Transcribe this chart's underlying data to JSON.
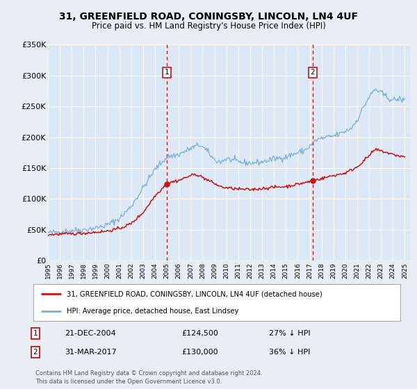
{
  "title": "31, GREENFIELD ROAD, CONINGSBY, LINCOLN, LN4 4UF",
  "subtitle": "Price paid vs. HM Land Registry's House Price Index (HPI)",
  "bg_color": "#e8eef5",
  "plot_bg_color": "#dce8f5",
  "grid_color": "#ffffff",
  "hpi_color": "#7dadd4",
  "price_color": "#cc1111",
  "marker_color": "#cc1111",
  "ylim": [
    0,
    350000
  ],
  "yticks": [
    0,
    50000,
    100000,
    150000,
    200000,
    250000,
    300000,
    350000
  ],
  "ytick_labels": [
    "£0",
    "£50K",
    "£100K",
    "£150K",
    "£200K",
    "£250K",
    "£300K",
    "£350K"
  ],
  "xmin": 1995.0,
  "xmax": 2025.5,
  "xticks": [
    1995,
    1996,
    1997,
    1998,
    1999,
    2000,
    2001,
    2002,
    2003,
    2004,
    2005,
    2006,
    2007,
    2008,
    2009,
    2010,
    2011,
    2012,
    2013,
    2014,
    2015,
    2016,
    2017,
    2018,
    2019,
    2020,
    2021,
    2022,
    2023,
    2024,
    2025
  ],
  "sale1_x": 2004.97,
  "sale1_y": 124500,
  "sale1_label": "1",
  "sale1_date": "21-DEC-2004",
  "sale1_price": "£124,500",
  "sale1_hpi": "27% ↓ HPI",
  "sale2_x": 2017.25,
  "sale2_y": 130000,
  "sale2_label": "2",
  "sale2_date": "31-MAR-2017",
  "sale2_price": "£130,000",
  "sale2_hpi": "36% ↓ HPI",
  "legend_line1": "31, GREENFIELD ROAD, CONINGSBY, LINCOLN, LN4 4UF (detached house)",
  "legend_line2": "HPI: Average price, detached house, East Lindsey",
  "footer": "Contains HM Land Registry data © Crown copyright and database right 2024.\nThis data is licensed under the Open Government Licence v3.0."
}
